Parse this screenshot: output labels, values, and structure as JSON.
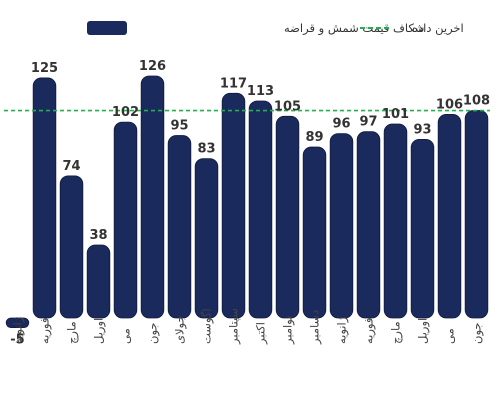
{
  "chart_data": {
    "type": "bar",
    "legend": [
      {
        "name": "شکاف قیمت شمش و قراضه",
        "kind": "bar",
        "color": "#1b2a5c"
      },
      {
        "name": "اخرین داده",
        "kind": "dashed-line",
        "color": "#22b14c"
      }
    ],
    "categories": [
      "ژانویه",
      "فوریه",
      "مارچ",
      "اوریل",
      "می",
      "جون",
      "جولای",
      "اگوست",
      "سپتامبر",
      "اکتبر",
      "نوامبر",
      "دسامبر",
      "ژانویه",
      "فوریه",
      "مارچ",
      "اوریل",
      "می",
      "جون"
    ],
    "values": [
      -5,
      125,
      74,
      38,
      102,
      126,
      95,
      83,
      117,
      113,
      105,
      89,
      96,
      97,
      101,
      93,
      106,
      108
    ],
    "reference_line_value": 108,
    "ylim": [
      -8,
      130
    ],
    "grid": false,
    "legend_position": "top",
    "colors": {
      "bar": "#1b2a5c",
      "bar_stroke": "#0f1a3d",
      "reference": "#22b14c",
      "text": "#333333",
      "category": "#444444"
    }
  }
}
